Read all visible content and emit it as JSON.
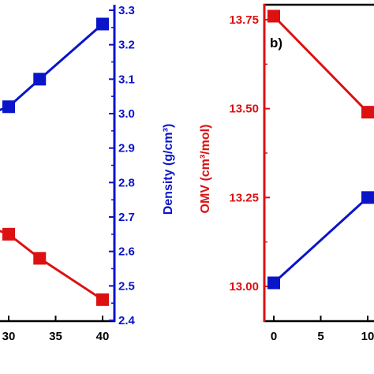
{
  "chart_data": [
    {
      "type": "line",
      "panel": "left",
      "xlabel": "",
      "y2label": "Density (g/cm³)",
      "x_ticks": [
        "30",
        "35",
        "40"
      ],
      "x_tick_values": [
        30,
        35,
        40
      ],
      "y2_ticks": [
        "2.4",
        "2.5",
        "2.6",
        "2.7",
        "2.8",
        "2.9",
        "3.0",
        "3.1",
        "3.2",
        "3.3"
      ],
      "y2_tick_values": [
        2.4,
        2.5,
        2.6,
        2.7,
        2.8,
        2.9,
        3.0,
        3.1,
        3.2,
        3.3
      ],
      "y2lim": [
        2.4,
        3.3
      ],
      "series": [
        {
          "color": "#0a14c8",
          "axis": "right",
          "x": [
            28,
            30,
            33.3,
            40
          ],
          "y": [
            3.0,
            3.02,
            3.1,
            3.26
          ]
        },
        {
          "color": "#dd1111",
          "axis": "right",
          "x": [
            28,
            30,
            33.3,
            40
          ],
          "y": [
            2.67,
            2.65,
            2.58,
            2.46
          ]
        }
      ]
    },
    {
      "type": "line",
      "panel": "right",
      "label": "b)",
      "ylabel": "OMV (cm³/mol)",
      "x_ticks": [
        "0",
        "5",
        "10"
      ],
      "x_tick_values": [
        0,
        5,
        10
      ],
      "y_ticks": [
        "13.00",
        "13.25",
        "13.50",
        "13.75"
      ],
      "y_tick_values": [
        13.0,
        13.25,
        13.5,
        13.75
      ],
      "ylim": [
        12.9,
        13.8
      ],
      "series": [
        {
          "color": "#dd1111",
          "x": [
            0,
            10
          ],
          "y": [
            13.76,
            13.49
          ]
        },
        {
          "color": "#0a14c8",
          "x": [
            0,
            10
          ],
          "y": [
            13.01,
            13.25
          ]
        }
      ]
    }
  ]
}
